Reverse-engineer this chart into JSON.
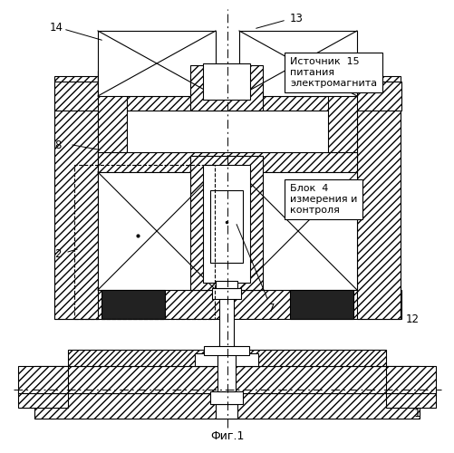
{
  "title": "Фиг.1",
  "label_15_text": "Источник  15\nпитания\nэлектромагнита",
  "label_4_text": "Блок  4\nизмерения и\nконтроля",
  "fig_width": 5.02,
  "fig_height": 5.0,
  "dpi": 100
}
